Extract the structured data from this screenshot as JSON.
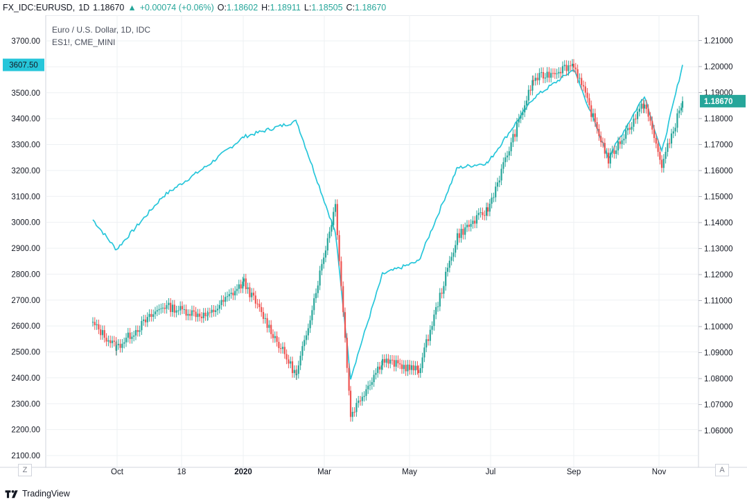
{
  "header": {
    "symbol": "FX_IDC:EURUSD,",
    "interval": "1D",
    "last": "1.18670",
    "change": "+0.00074 (+0.06%)",
    "o_label": "O:",
    "o_value": "1.18602",
    "h_label": "H:",
    "h_value": "1.18911",
    "l_label": "L:",
    "l_value": "1.18505",
    "c_label": "C:",
    "c_value": "1.18670"
  },
  "legend": {
    "main": "Euro / U.S. Dollar, 1D, IDC",
    "compare": "ES1!, CME_MINI"
  },
  "buttons": {
    "left_scale": "Z",
    "auto_scale": "A"
  },
  "footer": {
    "brand": "TradingView"
  },
  "colors": {
    "up": "#26a69a",
    "down": "#ef5350",
    "compare_line": "#26c6da",
    "grid": "#eef0f3",
    "axis_text": "#131722"
  },
  "chart_data": {
    "type": "candlestick",
    "title": "Euro / U.S. Dollar, 1D, IDC",
    "x_ticks": [
      "Oct",
      "18",
      "2020",
      "Mar",
      "May",
      "Jul",
      "Sep",
      "Nov"
    ],
    "left_axis": {
      "ticks": [
        "3700.00",
        "3600.00",
        "3500.00",
        "3400.00",
        "3300.00",
        "3200.00",
        "3100.00",
        "3000.00",
        "2900.00",
        "2800.00",
        "2700.00",
        "2600.00",
        "2500.00",
        "2400.00",
        "2300.00",
        "2200.00",
        "2100.00"
      ],
      "range": [
        2100,
        3700
      ],
      "current_label": "3607.50",
      "current_value": 3607.5
    },
    "right_axis": {
      "ticks": [
        "1.21000",
        "1.20000",
        "1.19000",
        "1.18000",
        "1.17000",
        "1.16000",
        "1.15000",
        "1.14000",
        "1.13000",
        "1.12000",
        "1.11000",
        "1.10000",
        "1.09000",
        "1.08000",
        "1.07000",
        "1.06000"
      ],
      "range": [
        1.06,
        1.21
      ],
      "current_label": "1.18670",
      "current_value": 1.1867
    },
    "series": [
      {
        "name": "EURUSD",
        "style": "candles",
        "key_points": [
          [
            "Sep 2019",
            1.101
          ],
          [
            "Oct 2019",
            1.092
          ],
          [
            "Nov 2019",
            1.108
          ],
          [
            "Dec 2019",
            1.104
          ],
          [
            "Jan 2020",
            1.117
          ],
          [
            "Feb 2020",
            1.081
          ],
          [
            "Mar 2020",
            1.147
          ],
          [
            "Mar 2020",
            1.066
          ],
          [
            "Apr 2020",
            1.087
          ],
          [
            "May 2020",
            1.083
          ],
          [
            "Jun 2020",
            1.135
          ],
          [
            "Jul 2020",
            1.145
          ],
          [
            "Aug 2020",
            1.195
          ],
          [
            "Sep 2020",
            1.201
          ],
          [
            "Sep 2020",
            1.164
          ],
          [
            "Oct 2020",
            1.186
          ],
          [
            "Oct 2020",
            1.162
          ],
          [
            "Nov 2020",
            1.1867
          ]
        ]
      },
      {
        "name": "ES1!",
        "style": "line",
        "key_points": [
          [
            "Sep 2019",
            3010
          ],
          [
            "Oct 2019",
            2895
          ],
          [
            "Nov 2019",
            3100
          ],
          [
            "Dec 2019",
            3220
          ],
          [
            "Jan 2020",
            3330
          ],
          [
            "Feb 2020",
            3390
          ],
          [
            "Feb 2020",
            2960
          ],
          [
            "Mar 2020",
            2400
          ],
          [
            "Apr 2020",
            2800
          ],
          [
            "May 2020",
            2850
          ],
          [
            "Jun 2020",
            3210
          ],
          [
            "Jul 2020",
            3230
          ],
          [
            "Aug 2020",
            3480
          ],
          [
            "Sep 2020",
            3590
          ],
          [
            "Sep 2020",
            3250
          ],
          [
            "Oct 2020",
            3490
          ],
          [
            "Oct 2020",
            3270
          ],
          [
            "Nov 2020",
            3607.5
          ]
        ]
      }
    ]
  }
}
